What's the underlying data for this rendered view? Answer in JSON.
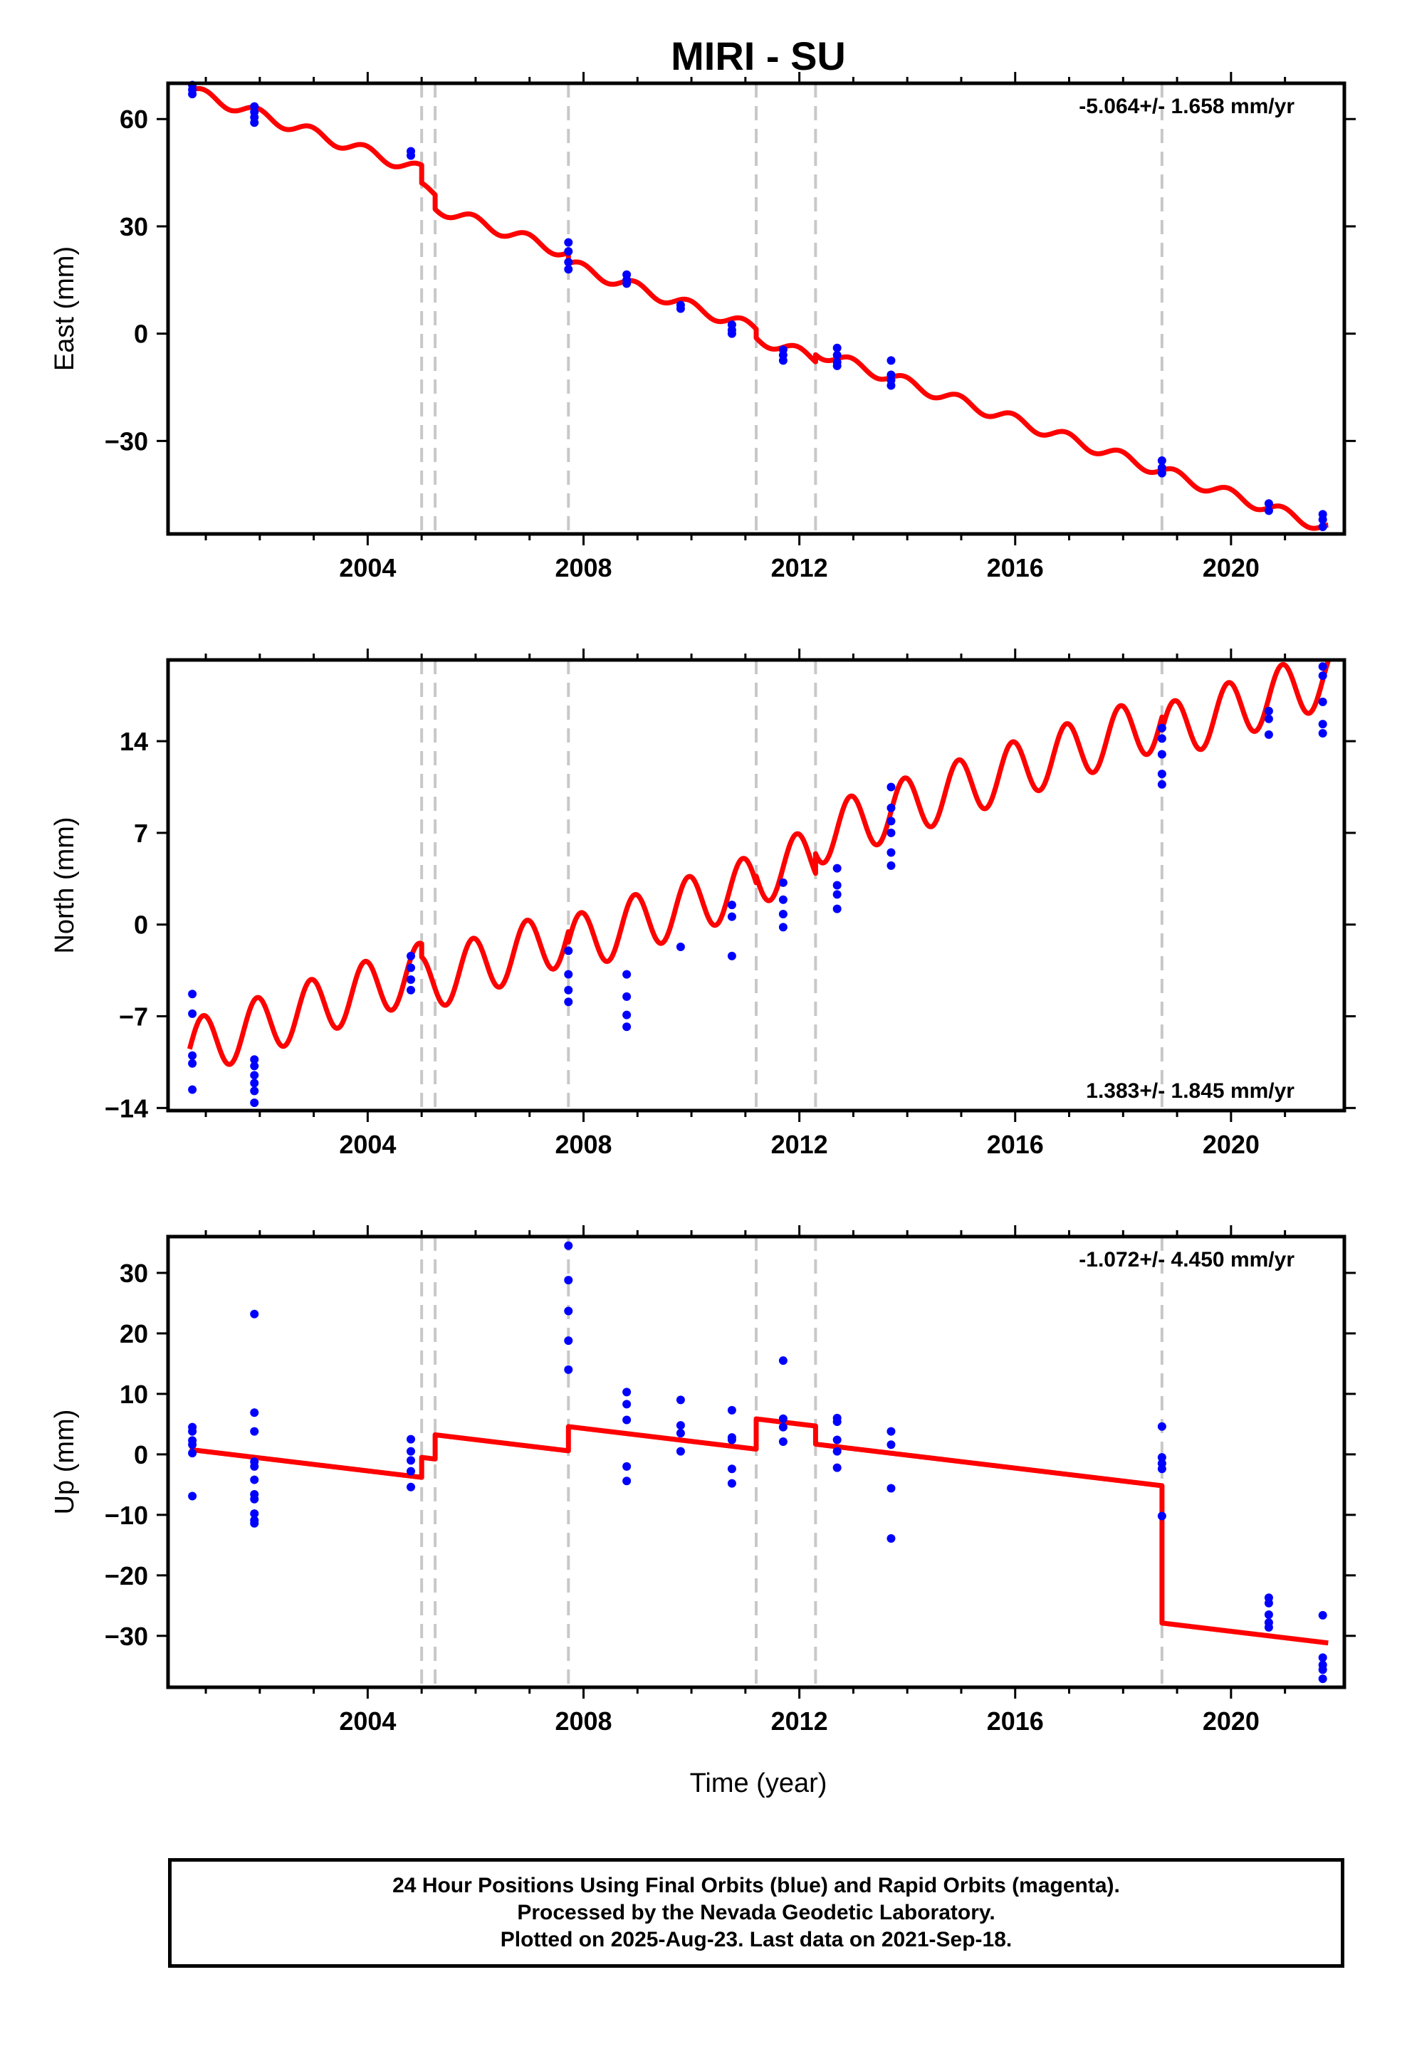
{
  "title": "MIRI - SU",
  "xlabel": "Time (year)",
  "footer": {
    "lines": [
      "24 Hour Positions Using Final Orbits (blue) and Rapid Orbits (magenta).",
      "Processed by the Nevada Geodetic Laboratory.",
      "Plotted on 2025-Aug-23. Last data on 2021-Sep-18."
    ]
  },
  "colors": {
    "data": "#0000ff",
    "model": "#ff0000",
    "offset_lines": "#c8c8c8",
    "frame": "#000000"
  },
  "chart_data": [
    {
      "type": "scatter",
      "panel": "east",
      "ylabel": "East (mm)",
      "rate": "-5.064+/- 1.658 mm/yr",
      "rate_position": "top-right",
      "xlim": [
        2000.3,
        2022.1
      ],
      "ylim": [
        -56,
        70
      ],
      "xticks": [
        2004,
        2008,
        2012,
        2016,
        2020
      ],
      "yticks": [
        60,
        30,
        0,
        -30
      ],
      "ytick_labels": [
        "60",
        "30",
        "0",
        "−30"
      ],
      "offset_lines": [
        2005.0,
        2005.25,
        2007.72,
        2011.2,
        2012.3,
        2018.72
      ],
      "model": {
        "start": 2000.7,
        "end": 2021.8,
        "base": 68.0,
        "slope": -5.21,
        "annual_amp": 1.6,
        "steps": [
          [
            2005.0,
            -5.0
          ],
          [
            2005.25,
            -4.0
          ],
          [
            2007.72,
            -3.0
          ],
          [
            2011.2,
            -2.5
          ],
          [
            2012.3,
            2.0
          ]
        ]
      },
      "points": [
        [
          2000.75,
          69.5
        ],
        [
          2000.75,
          68.2
        ],
        [
          2000.75,
          67.0
        ],
        [
          2001.9,
          63.5
        ],
        [
          2001.9,
          62.0
        ],
        [
          2001.9,
          60.5
        ],
        [
          2001.9,
          59.0
        ],
        [
          2004.8,
          51.0
        ],
        [
          2004.8,
          49.8
        ],
        [
          2007.72,
          25.5
        ],
        [
          2007.72,
          23.0
        ],
        [
          2007.72,
          20.0
        ],
        [
          2007.72,
          18.0
        ],
        [
          2008.8,
          16.5
        ],
        [
          2008.8,
          15.0
        ],
        [
          2008.8,
          14.0
        ],
        [
          2009.8,
          8.0
        ],
        [
          2009.8,
          7.0
        ],
        [
          2010.75,
          2.5
        ],
        [
          2010.75,
          1.0
        ],
        [
          2010.75,
          0.0
        ],
        [
          2011.7,
          -4.5
        ],
        [
          2011.7,
          -6.0
        ],
        [
          2011.7,
          -7.5
        ],
        [
          2012.7,
          -4.0
        ],
        [
          2012.7,
          -6.0
        ],
        [
          2012.7,
          -8.0
        ],
        [
          2012.7,
          -9.0
        ],
        [
          2013.7,
          -7.5
        ],
        [
          2013.7,
          -11.5
        ],
        [
          2013.7,
          -13.0
        ],
        [
          2013.7,
          -14.5
        ],
        [
          2018.72,
          -35.5
        ],
        [
          2018.72,
          -37.5
        ],
        [
          2018.72,
          -39.0
        ],
        [
          2020.7,
          -47.5
        ],
        [
          2020.7,
          -49.5
        ],
        [
          2021.7,
          -50.5
        ],
        [
          2021.7,
          -52.0
        ],
        [
          2021.7,
          -54.0
        ]
      ]
    },
    {
      "type": "scatter",
      "panel": "north",
      "ylabel": "North (mm)",
      "rate": "1.383+/- 1.845 mm/yr",
      "rate_position": "bottom-right",
      "xlim": [
        2000.3,
        2022.1
      ],
      "ylim": [
        -14.2,
        20.2
      ],
      "xticks": [
        2004,
        2008,
        2012,
        2016,
        2020
      ],
      "yticks": [
        14,
        7,
        0,
        -7,
        -14
      ],
      "ytick_labels": [
        "14",
        "7",
        "0",
        "−7",
        "−14"
      ],
      "offset_lines": [
        2005.0,
        2005.25,
        2007.72,
        2011.2,
        2012.3,
        2018.72
      ],
      "model": {
        "start": 2000.7,
        "end": 2021.8,
        "base": -9.5,
        "slope": 1.38,
        "annual_amp": 2.2,
        "steps": [
          [
            2005.0,
            -1.0
          ],
          [
            2007.72,
            -0.8
          ],
          [
            2011.2,
            0.5
          ],
          [
            2012.3,
            1.5
          ],
          [
            2018.72,
            -1.0
          ]
        ]
      },
      "points": [
        [
          2000.75,
          -5.3
        ],
        [
          2000.75,
          -6.8
        ],
        [
          2000.75,
          -10.0
        ],
        [
          2000.75,
          -10.6
        ],
        [
          2000.75,
          -12.6
        ],
        [
          2001.9,
          -10.3
        ],
        [
          2001.9,
          -10.8
        ],
        [
          2001.9,
          -11.5
        ],
        [
          2001.9,
          -12.1
        ],
        [
          2001.9,
          -12.7
        ],
        [
          2001.9,
          -13.6
        ],
        [
          2004.8,
          -2.4
        ],
        [
          2004.8,
          -3.3
        ],
        [
          2004.8,
          -4.2
        ],
        [
          2004.8,
          -5.0
        ],
        [
          2007.72,
          -2.0
        ],
        [
          2007.72,
          -3.8
        ],
        [
          2007.72,
          -5.0
        ],
        [
          2007.72,
          -5.9
        ],
        [
          2008.8,
          -3.8
        ],
        [
          2008.8,
          -5.5
        ],
        [
          2008.8,
          -6.9
        ],
        [
          2008.8,
          -7.8
        ],
        [
          2009.8,
          -1.7
        ],
        [
          2010.75,
          1.5
        ],
        [
          2010.75,
          0.6
        ],
        [
          2010.75,
          -2.4
        ],
        [
          2011.7,
          3.2
        ],
        [
          2011.7,
          1.9
        ],
        [
          2011.7,
          0.8
        ],
        [
          2011.7,
          -0.2
        ],
        [
          2012.7,
          4.3
        ],
        [
          2012.7,
          3.0
        ],
        [
          2012.7,
          2.3
        ],
        [
          2012.7,
          1.2
        ],
        [
          2013.7,
          10.5
        ],
        [
          2013.7,
          8.9
        ],
        [
          2013.7,
          7.9
        ],
        [
          2013.7,
          7.0
        ],
        [
          2013.7,
          5.5
        ],
        [
          2013.7,
          4.5
        ],
        [
          2018.72,
          15.0
        ],
        [
          2018.72,
          14.2
        ],
        [
          2018.72,
          13.0
        ],
        [
          2018.72,
          11.5
        ],
        [
          2018.72,
          10.7
        ],
        [
          2020.7,
          16.3
        ],
        [
          2020.7,
          15.7
        ],
        [
          2020.7,
          14.5
        ],
        [
          2021.7,
          19.7
        ],
        [
          2021.7,
          19.0
        ],
        [
          2021.7,
          17.0
        ],
        [
          2021.7,
          15.3
        ],
        [
          2021.7,
          14.6
        ]
      ]
    },
    {
      "type": "scatter",
      "panel": "up",
      "ylabel": "Up (mm)",
      "rate": "-1.072+/- 4.450 mm/yr",
      "rate_position": "top-right",
      "xlim": [
        2000.3,
        2022.1
      ],
      "ylim": [
        -38.5,
        36
      ],
      "xticks": [
        2004,
        2008,
        2012,
        2016,
        2020
      ],
      "yticks": [
        30,
        20,
        10,
        0,
        -10,
        -20,
        -30
      ],
      "ytick_labels": [
        "30",
        "20",
        "10",
        "0",
        "−10",
        "−20",
        "−30"
      ],
      "offset_lines": [
        2005.0,
        2005.25,
        2007.72,
        2011.2,
        2012.3,
        2018.72
      ],
      "model": {
        "start": 2000.7,
        "end": 2021.8,
        "base": 0.8,
        "slope": -1.07,
        "annual_amp": 0,
        "steps": [
          [
            2005.0,
            3.3
          ],
          [
            2005.25,
            4.0
          ],
          [
            2007.72,
            4.0
          ],
          [
            2011.2,
            5.0
          ],
          [
            2012.3,
            -3.0
          ],
          [
            2018.72,
            -22.7
          ]
        ]
      },
      "points": [
        [
          2000.75,
          4.5
        ],
        [
          2000.75,
          3.8
        ],
        [
          2000.75,
          2.3
        ],
        [
          2000.75,
          1.6
        ],
        [
          2000.75,
          0.2
        ],
        [
          2000.75,
          -6.9
        ],
        [
          2001.9,
          23.2
        ],
        [
          2001.9,
          6.9
        ],
        [
          2001.9,
          3.8
        ],
        [
          2001.9,
          -1.2
        ],
        [
          2001.9,
          -2.0
        ],
        [
          2001.9,
          -4.2
        ],
        [
          2001.9,
          -6.6
        ],
        [
          2001.9,
          -7.4
        ],
        [
          2001.9,
          -9.8
        ],
        [
          2001.9,
          -10.9
        ],
        [
          2001.9,
          -11.4
        ],
        [
          2004.8,
          2.5
        ],
        [
          2004.8,
          0.5
        ],
        [
          2004.8,
          -1.0
        ],
        [
          2004.8,
          -2.8
        ],
        [
          2004.8,
          -5.4
        ],
        [
          2007.72,
          34.5
        ],
        [
          2007.72,
          28.8
        ],
        [
          2007.72,
          23.7
        ],
        [
          2007.72,
          18.8
        ],
        [
          2007.72,
          14.0
        ],
        [
          2008.8,
          10.3
        ],
        [
          2008.8,
          8.3
        ],
        [
          2008.8,
          5.7
        ],
        [
          2008.8,
          -2.0
        ],
        [
          2008.8,
          -4.4
        ],
        [
          2009.8,
          9.0
        ],
        [
          2009.8,
          4.8
        ],
        [
          2009.8,
          3.5
        ],
        [
          2009.8,
          0.5
        ],
        [
          2010.75,
          7.3
        ],
        [
          2010.75,
          2.8
        ],
        [
          2010.75,
          2.4
        ],
        [
          2010.75,
          -2.4
        ],
        [
          2010.75,
          -4.8
        ],
        [
          2011.7,
          15.5
        ],
        [
          2011.7,
          5.9
        ],
        [
          2011.7,
          4.5
        ],
        [
          2011.7,
          2.1
        ],
        [
          2012.7,
          6.0
        ],
        [
          2012.7,
          5.4
        ],
        [
          2012.7,
          2.4
        ],
        [
          2012.7,
          0.5
        ],
        [
          2012.7,
          -2.2
        ],
        [
          2013.7,
          3.8
        ],
        [
          2013.7,
          1.6
        ],
        [
          2013.7,
          -5.6
        ],
        [
          2013.7,
          -13.9
        ],
        [
          2018.72,
          4.6
        ],
        [
          2018.72,
          -0.5
        ],
        [
          2018.72,
          -1.5
        ],
        [
          2018.72,
          -2.4
        ],
        [
          2018.72,
          -10.2
        ],
        [
          2020.7,
          -23.7
        ],
        [
          2020.7,
          -24.6
        ],
        [
          2020.7,
          -26.5
        ],
        [
          2020.7,
          -27.8
        ],
        [
          2020.7,
          -28.6
        ],
        [
          2021.7,
          -26.6
        ],
        [
          2021.7,
          -33.6
        ],
        [
          2021.7,
          -34.8
        ],
        [
          2021.7,
          -35.6
        ],
        [
          2021.7,
          -37.1
        ]
      ]
    }
  ]
}
